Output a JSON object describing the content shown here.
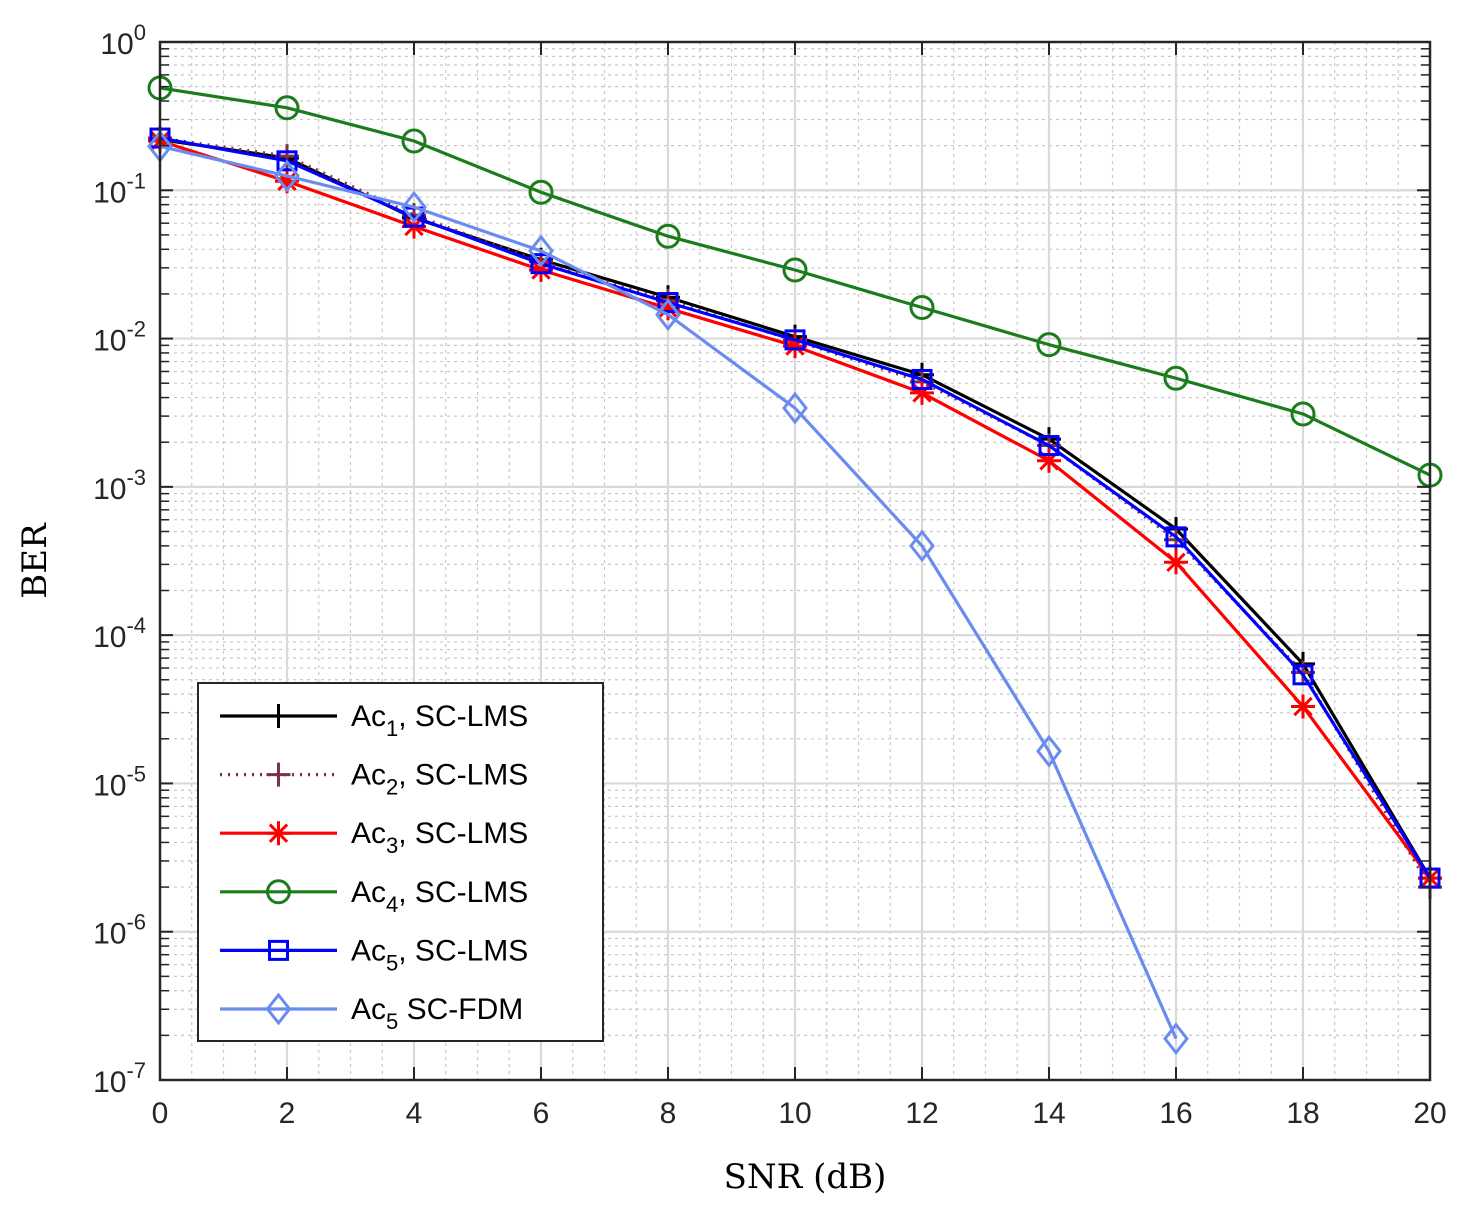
{
  "chart_data": {
    "type": "line",
    "title": "",
    "xlabel": "SNR (dB)",
    "ylabel": "BER",
    "yscale": "log",
    "xlim": [
      0,
      20
    ],
    "ylim": [
      1e-07,
      1
    ],
    "grid": true,
    "minor_grid": true,
    "legend_position": "bottom-left",
    "x": [
      0,
      2,
      4,
      6,
      8,
      10,
      12,
      14,
      16,
      18,
      20
    ],
    "x_ticks": [
      "0",
      "2",
      "4",
      "6",
      "8",
      "10",
      "12",
      "14",
      "16",
      "18",
      "20"
    ],
    "y_ticks": [
      {
        "base": "10",
        "exp": "0"
      },
      {
        "base": "10",
        "exp": "-1"
      },
      {
        "base": "10",
        "exp": "-2"
      },
      {
        "base": "10",
        "exp": "-3"
      },
      {
        "base": "10",
        "exp": "-4"
      },
      {
        "base": "10",
        "exp": "-5"
      },
      {
        "base": "10",
        "exp": "-6"
      },
      {
        "base": "10",
        "exp": "-7"
      }
    ],
    "series": [
      {
        "name": "Ac1, SC-LMS",
        "label_base": "Ac",
        "label_sub": "1",
        "label_rest": ", SC-LMS",
        "color": "#000000",
        "dash": "solid",
        "marker": "plus",
        "values": [
          0.22,
          0.165,
          0.065,
          0.034,
          0.019,
          0.0103,
          0.0057,
          0.0021,
          0.00052,
          6.4e-05,
          2.3e-06
        ]
      },
      {
        "name": "Ac2, SC-LMS",
        "label_base": "Ac",
        "label_sub": "2",
        "label_rest": ", SC-LMS",
        "color": "#7e2f4e",
        "dash": "dotted",
        "marker": "plus",
        "values": [
          0.225,
          0.17,
          0.068,
          0.033,
          0.018,
          0.0097,
          0.0051,
          0.0019,
          0.00044,
          5.6e-05,
          2e-06
        ]
      },
      {
        "name": "Ac3, SC-LMS",
        "label_base": "Ac",
        "label_sub": "3",
        "label_rest": ", SC-LMS",
        "color": "#ff0000",
        "dash": "solid",
        "marker": "asterisk",
        "values": [
          0.215,
          0.115,
          0.057,
          0.029,
          0.016,
          0.0089,
          0.0043,
          0.0015,
          0.00031,
          3.3e-05,
          2.3e-06
        ]
      },
      {
        "name": "Ac4, SC-LMS",
        "label_base": "Ac",
        "label_sub": "4",
        "label_rest": ", SC-LMS",
        "color": "#1b7c1b",
        "dash": "solid",
        "marker": "circle",
        "values": [
          0.49,
          0.36,
          0.215,
          0.097,
          0.049,
          0.029,
          0.0162,
          0.0091,
          0.0054,
          0.0031,
          0.0012
        ]
      },
      {
        "name": "Ac5, SC-LMS",
        "label_base": "Ac",
        "label_sub": "5",
        "label_rest": ", SC-LMS",
        "color": "#0000ff",
        "dash": "solid",
        "marker": "square",
        "values": [
          0.225,
          0.158,
          0.066,
          0.032,
          0.0175,
          0.0098,
          0.0053,
          0.0019,
          0.00046,
          5.4e-05,
          2.3e-06
        ]
      },
      {
        "name": "Ac5  SC-FDM",
        "label_base": "Ac",
        "label_sub": "5",
        "label_rest": "  SC-FDM",
        "color": "#6a8cef",
        "dash": "solid",
        "marker": "diamond",
        "values": [
          0.198,
          0.125,
          0.077,
          0.039,
          0.0145,
          0.0034,
          0.0004,
          1.65e-05,
          1.9e-07,
          null,
          null
        ]
      }
    ]
  }
}
